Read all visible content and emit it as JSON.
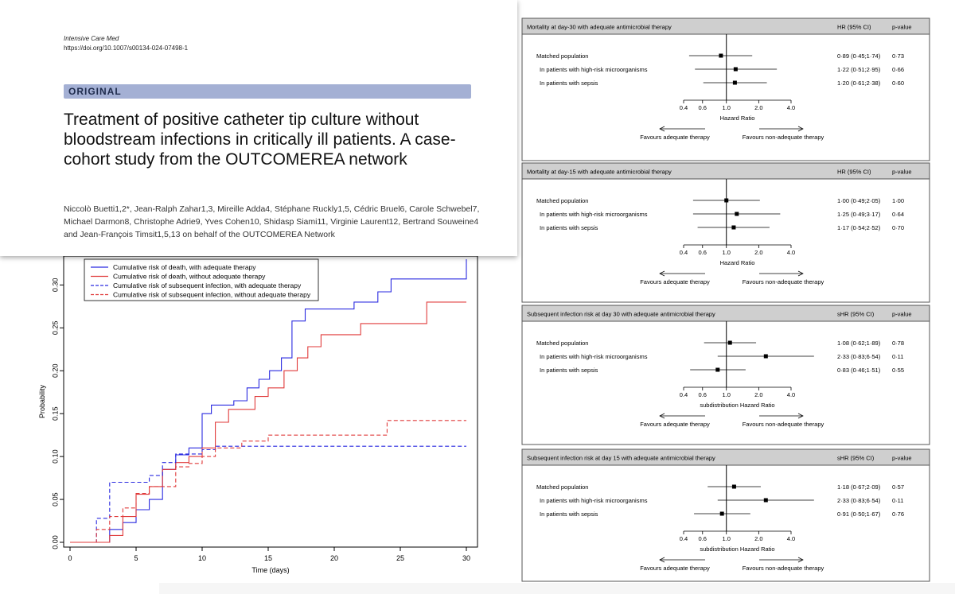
{
  "paper": {
    "journal": "Intensive Care Med",
    "doi": "https://doi.org/10.1007/s00134-024-07498-1",
    "section": "ORIGINAL",
    "title": "Treatment of positive catheter tip culture without bloodstream infections in critically ill patients. A case-cohort study from the OUTCOMEREA network",
    "authors_line1": "Niccolò Buetti1,2*, Jean-Ralph Zahar1,3, Mireille Adda4, Stéphane Ruckly1,5, Cédric Bruel6, Carole Schwebel7,",
    "authors_line2": "Michael Darmon8, Christophe Adrie9, Yves Cohen10, Shidasp Siami11, Virginie Laurent12, Bertrand Souweine4",
    "authors_line3": "and Jean-François Timsit1,5,13 on behalf of the OUTCOMEREA Network",
    "orcid_color": "#a6ce39",
    "banner_color": "#a4b0d4"
  },
  "chart_data": [
    {
      "type": "line",
      "step": true,
      "xlabel": "Time (days)",
      "ylabel": "Probability",
      "xlim": [
        0,
        30
      ],
      "ylim": [
        0,
        0.33
      ],
      "xticks": [
        "0",
        "5",
        "10",
        "15",
        "20",
        "25",
        "30"
      ],
      "yticks": [
        "0.00",
        "0.05",
        "0.10",
        "0.15",
        "0.20",
        "0.25",
        "0.30"
      ],
      "legend_position": "top-left",
      "series": [
        {
          "name": "Cumulative risk of death, with adequate therapy",
          "color": "#2a2ae0",
          "dash": false,
          "points": [
            [
              0,
              0
            ],
            [
              3,
              0
            ],
            [
              3,
              0.015
            ],
            [
              4,
              0.015
            ],
            [
              4,
              0.023
            ],
            [
              5,
              0.023
            ],
            [
              5,
              0.038
            ],
            [
              6,
              0.038
            ],
            [
              6,
              0.05
            ],
            [
              7,
              0.05
            ],
            [
              7,
              0.085
            ],
            [
              8,
              0.085
            ],
            [
              8,
              0.102
            ],
            [
              9,
              0.102
            ],
            [
              9,
              0.11
            ],
            [
              10,
              0.11
            ],
            [
              10,
              0.15
            ],
            [
              10.7,
              0.15
            ],
            [
              10.7,
              0.16
            ],
            [
              12.4,
              0.16
            ],
            [
              12.4,
              0.165
            ],
            [
              13.4,
              0.165
            ],
            [
              13.4,
              0.18
            ],
            [
              14.3,
              0.18
            ],
            [
              14.3,
              0.19
            ],
            [
              15.1,
              0.19
            ],
            [
              15.1,
              0.2
            ],
            [
              16,
              0.2
            ],
            [
              16,
              0.215
            ],
            [
              16.8,
              0.215
            ],
            [
              16.8,
              0.258
            ],
            [
              17.8,
              0.258
            ],
            [
              17.8,
              0.272
            ],
            [
              21.5,
              0.272
            ],
            [
              21.5,
              0.28
            ],
            [
              23.3,
              0.28
            ],
            [
              23.3,
              0.292
            ],
            [
              24.3,
              0.292
            ],
            [
              24.3,
              0.307
            ],
            [
              30,
              0.307
            ],
            [
              30,
              0.33
            ]
          ]
        },
        {
          "name": "Cumulative risk of death, without adequate therapy",
          "color": "#e03a3a",
          "dash": false,
          "points": [
            [
              0,
              0
            ],
            [
              3,
              0
            ],
            [
              3,
              0.008
            ],
            [
              4,
              0.008
            ],
            [
              4,
              0.03
            ],
            [
              5,
              0.03
            ],
            [
              5,
              0.056
            ],
            [
              6,
              0.056
            ],
            [
              6,
              0.065
            ],
            [
              7,
              0.065
            ],
            [
              7,
              0.085
            ],
            [
              8,
              0.085
            ],
            [
              8,
              0.093
            ],
            [
              9,
              0.093
            ],
            [
              9,
              0.1
            ],
            [
              10,
              0.1
            ],
            [
              10,
              0.11
            ],
            [
              11,
              0.11
            ],
            [
              11,
              0.14
            ],
            [
              12,
              0.14
            ],
            [
              12,
              0.155
            ],
            [
              14,
              0.155
            ],
            [
              14,
              0.17
            ],
            [
              15,
              0.17
            ],
            [
              15,
              0.18
            ],
            [
              16.2,
              0.18
            ],
            [
              16.2,
              0.2
            ],
            [
              17.2,
              0.2
            ],
            [
              17.2,
              0.215
            ],
            [
              18,
              0.215
            ],
            [
              18,
              0.228
            ],
            [
              19,
              0.228
            ],
            [
              19,
              0.242
            ],
            [
              22,
              0.242
            ],
            [
              22,
              0.255
            ],
            [
              27,
              0.255
            ],
            [
              27,
              0.28
            ],
            [
              30,
              0.28
            ]
          ]
        },
        {
          "name": "Cumulative risk of subsequent infection, with adequate therapy",
          "color": "#2a2ae0",
          "dash": true,
          "points": [
            [
              0,
              0
            ],
            [
              2,
              0
            ],
            [
              2,
              0.028
            ],
            [
              3,
              0.028
            ],
            [
              3,
              0.07
            ],
            [
              6,
              0.07
            ],
            [
              6,
              0.078
            ],
            [
              7,
              0.078
            ],
            [
              7,
              0.093
            ],
            [
              8,
              0.093
            ],
            [
              8,
              0.103
            ],
            [
              10,
              0.103
            ],
            [
              10,
              0.108
            ],
            [
              11,
              0.108
            ],
            [
              11,
              0.112
            ],
            [
              30,
              0.112
            ]
          ]
        },
        {
          "name": "Cumulative risk of subsequent infection, without adequate therapy",
          "color": "#e03a3a",
          "dash": true,
          "points": [
            [
              0,
              0
            ],
            [
              2,
              0
            ],
            [
              2,
              0.015
            ],
            [
              3,
              0.015
            ],
            [
              3,
              0.03
            ],
            [
              4,
              0.03
            ],
            [
              4,
              0.04
            ],
            [
              5,
              0.04
            ],
            [
              5,
              0.057
            ],
            [
              6,
              0.057
            ],
            [
              6,
              0.065
            ],
            [
              8,
              0.065
            ],
            [
              8,
              0.088
            ],
            [
              9,
              0.088
            ],
            [
              9,
              0.092
            ],
            [
              10,
              0.092
            ],
            [
              10,
              0.1
            ],
            [
              11,
              0.1
            ],
            [
              11,
              0.11
            ],
            [
              13,
              0.11
            ],
            [
              13,
              0.118
            ],
            [
              15,
              0.118
            ],
            [
              15,
              0.125
            ],
            [
              24,
              0.125
            ],
            [
              24,
              0.142
            ],
            [
              30,
              0.142
            ]
          ]
        }
      ]
    },
    {
      "type": "forest",
      "title": "Mortality at day-30 with adequate antimicrobial therapy",
      "stat_header": "HR (95% CI)",
      "p_header": "p-value",
      "xlabel": "Hazard Ratio",
      "xticks": [
        0.4,
        0.6,
        1.0,
        2.0,
        4.0
      ],
      "xtick_labels": [
        "0.4",
        "0.6",
        "1.0",
        "2.0",
        "4.0"
      ],
      "ref": 1.0,
      "left_arrow": "Favours adequate therapy",
      "right_arrow": "Favours non-adequate therapy",
      "rows": [
        {
          "label": "Matched population",
          "est": 0.89,
          "lo": 0.45,
          "hi": 1.74,
          "ci": "0·89 (0·45;1·74)",
          "p": "0·73",
          "indent": false
        },
        {
          "label": "In patients with high-risk microorganisms",
          "est": 1.22,
          "lo": 0.51,
          "hi": 2.95,
          "ci": "1·22 (0·51;2·95)",
          "p": "0·66",
          "indent": true
        },
        {
          "label": "In patients with sepsis",
          "est": 1.2,
          "lo": 0.61,
          "hi": 2.38,
          "ci": "1·20 (0·61;2·38)",
          "p": "0·60",
          "indent": true
        }
      ]
    },
    {
      "type": "forest",
      "title": "Mortality at day-15 with adequate antimicrobial therapy",
      "stat_header": "HR (95% CI)",
      "p_header": "p-value",
      "xlabel": "Hazard Ratio",
      "xticks": [
        0.4,
        0.6,
        1.0,
        2.0,
        4.0
      ],
      "xtick_labels": [
        "0.4",
        "0.6",
        "1.0",
        "2.0",
        "4.0"
      ],
      "ref": 1.0,
      "left_arrow": "Favours adequate therapy",
      "right_arrow": "Favours non-adequate therapy",
      "rows": [
        {
          "label": "Matched population",
          "est": 1.0,
          "lo": 0.49,
          "hi": 2.05,
          "ci": "1·00 (0·49;2·05)",
          "p": "1·00",
          "indent": false
        },
        {
          "label": "In patients with high-risk microorganisms",
          "est": 1.25,
          "lo": 0.49,
          "hi": 3.17,
          "ci": "1·25 (0·49;3·17)",
          "p": "0·64",
          "indent": true
        },
        {
          "label": "In patients with sepsis",
          "est": 1.17,
          "lo": 0.54,
          "hi": 2.52,
          "ci": "1·17 (0·54;2·52)",
          "p": "0·70",
          "indent": true
        }
      ]
    },
    {
      "type": "forest",
      "title": "Subsequent infection risk at day 30 with adequate antimicrobial therapy",
      "stat_header": "sHR (95% CI)",
      "p_header": "p-value",
      "xlabel": "subdistribution Hazard Ratio",
      "xticks": [
        0.4,
        0.6,
        1.0,
        2.0,
        4.0
      ],
      "xtick_labels": [
        "0.4",
        "0.6",
        "1.0",
        "2.0",
        "4.0"
      ],
      "ref": 1.0,
      "left_arrow": "Favours adequate therapy",
      "right_arrow": "Favours non-adequate therapy",
      "rows": [
        {
          "label": "Matched population",
          "est": 1.08,
          "lo": 0.62,
          "hi": 1.89,
          "ci": "1·08 (0·62;1·89)",
          "p": "0·78",
          "indent": false
        },
        {
          "label": "In patients with high-risk microorganisms",
          "est": 2.33,
          "lo": 0.83,
          "hi": 6.54,
          "ci": "2·33 (0·83;6·54)",
          "p": "0·11",
          "indent": true
        },
        {
          "label": "In patients with sepsis",
          "est": 0.83,
          "lo": 0.46,
          "hi": 1.51,
          "ci": "0·83 (0·46;1·51)",
          "p": "0·55",
          "indent": true
        }
      ]
    },
    {
      "type": "forest",
      "title": "Subsequent infection risk at day 15 with adequate antimicrobial therapy",
      "stat_header": "sHR (95% CI)",
      "p_header": "p-value",
      "xlabel": "subdistribution Hazard Ratio",
      "xticks": [
        0.4,
        0.6,
        1.0,
        2.0,
        4.0
      ],
      "xtick_labels": [
        "0.4",
        "0.6",
        "1.0",
        "2.0",
        "4.0"
      ],
      "ref": 1.0,
      "left_arrow": "Favours adequate therapy",
      "right_arrow": "Favours non-adequate therapy",
      "rows": [
        {
          "label": "Matched population",
          "est": 1.18,
          "lo": 0.67,
          "hi": 2.09,
          "ci": "1·18 (0·67;2·09)",
          "p": "0·57",
          "indent": false
        },
        {
          "label": "In patients with high-risk microorganisms",
          "est": 2.33,
          "lo": 0.83,
          "hi": 6.54,
          "ci": "2·33 (0·83;6·54)",
          "p": "0·11",
          "indent": true
        },
        {
          "label": "In patients with sepsis",
          "est": 0.91,
          "lo": 0.5,
          "hi": 1.67,
          "ci": "0·91 (0·50;1·67)",
          "p": "0·76",
          "indent": true
        }
      ]
    }
  ]
}
